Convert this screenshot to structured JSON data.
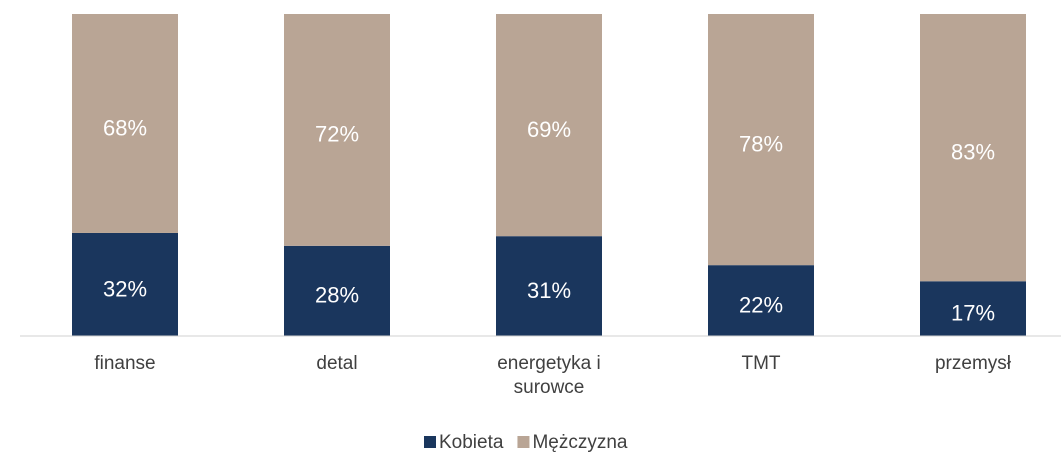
{
  "chart_data": {
    "type": "stacked_bar",
    "categories": [
      "finanse",
      "detal",
      "energetyka i surowce",
      "TMT",
      "przemysł"
    ],
    "series": [
      {
        "name": "Kobieta",
        "color": "#1a365d",
        "values": [
          32,
          28,
          31,
          22,
          17
        ],
        "value_labels": [
          "32%",
          "28%",
          "31%",
          "22%",
          "17%"
        ]
      },
      {
        "name": "Mężczyzna",
        "color": "#b9a595",
        "values": [
          68,
          72,
          69,
          78,
          83
        ],
        "value_labels": [
          "68%",
          "72%",
          "69%",
          "78%",
          "83%"
        ]
      }
    ],
    "ylim": [
      0,
      100
    ],
    "legend": "bottom"
  }
}
